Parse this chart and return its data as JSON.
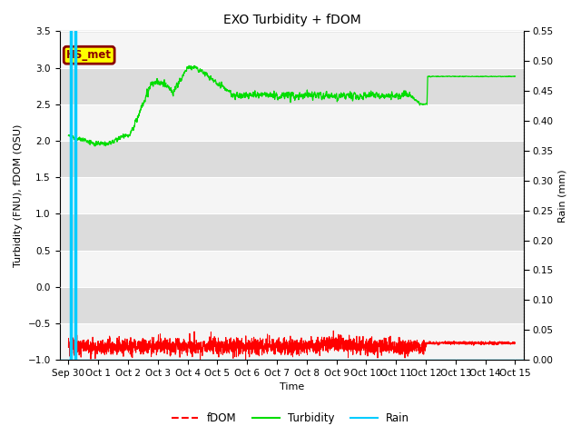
{
  "title": "EXO Turbidity + fDOM",
  "ylabel_left": "Turbidity (FNU), fDOM (QSU)",
  "ylabel_right": "Rain (mm)",
  "xlabel": "Time",
  "ylim_left": [
    -1.0,
    3.5
  ],
  "ylim_right": [
    0.0,
    0.55
  ],
  "yticks_left": [
    -1.0,
    -0.5,
    0.0,
    0.5,
    1.0,
    1.5,
    2.0,
    2.5,
    3.0,
    3.5
  ],
  "yticks_right": [
    0.0,
    0.05,
    0.1,
    0.15,
    0.2,
    0.25,
    0.3,
    0.35,
    0.4,
    0.45,
    0.5,
    0.55
  ],
  "bg_color": "#ebebeb",
  "fig_bg_color": "#ffffff",
  "band_color_light": "#f5f5f5",
  "band_color_dark": "#dcdcdc",
  "hs_met_label": "HS_met",
  "hs_met_bg": "#ffff00",
  "hs_met_border": "#8b0000",
  "fdom_color": "#ff0000",
  "turbidity_color": "#00dd00",
  "rain_color": "#00ccff",
  "x_tick_labels": [
    "Sep 30",
    "Oct 1",
    "Oct 2",
    "Oct 3",
    "Oct 4",
    "Oct 5",
    "Oct 6",
    "Oct 7",
    "Oct 8",
    "Oct 9",
    "Oct 10",
    "Oct 11",
    "Oct 12",
    "Oct 13",
    "Oct 14",
    "Oct 15"
  ],
  "rain_vlines_x": [
    0.07,
    0.22
  ],
  "title_fontsize": 10,
  "axis_fontsize": 8,
  "tick_fontsize": 7.5
}
